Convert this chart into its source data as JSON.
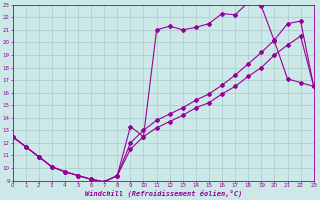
{
  "background_color": "#cce8e8",
  "grid_color": "#aacccc",
  "line_color": "#990099",
  "xlim": [
    0,
    23
  ],
  "ylim": [
    9,
    23
  ],
  "xticks": [
    0,
    1,
    2,
    3,
    4,
    5,
    6,
    7,
    8,
    9,
    10,
    11,
    12,
    13,
    14,
    15,
    16,
    17,
    18,
    19,
    20,
    21,
    22,
    23
  ],
  "yticks": [
    9,
    10,
    11,
    12,
    13,
    14,
    15,
    16,
    17,
    18,
    19,
    20,
    21,
    22,
    23
  ],
  "xlabel": "Windchill (Refroidissement éolien,°C)",
  "line1_x": [
    0,
    1,
    2,
    3,
    4,
    5,
    6,
    7,
    8,
    9,
    10,
    11,
    12,
    13,
    14,
    15,
    16,
    17,
    18,
    19,
    20,
    21,
    22,
    23
  ],
  "line1_y": [
    12.5,
    11.7,
    10.9,
    10.1,
    9.7,
    9.4,
    9.1,
    8.9,
    9.4,
    13.3,
    12.5,
    21.0,
    21.3,
    21.0,
    21.2,
    21.5,
    22.3,
    22.2,
    23.2,
    22.9,
    20.1,
    17.1,
    16.8,
    16.5
  ],
  "line2_x": [
    0,
    1,
    2,
    3,
    4,
    5,
    6,
    7,
    8,
    9,
    10,
    11,
    12,
    13,
    14,
    15,
    16,
    17,
    18,
    19,
    20,
    21,
    22,
    23
  ],
  "line2_y": [
    12.5,
    11.7,
    10.9,
    10.1,
    9.7,
    9.4,
    9.1,
    8.9,
    9.4,
    12.0,
    13.0,
    13.8,
    14.3,
    14.8,
    15.4,
    15.9,
    16.6,
    17.4,
    18.3,
    19.2,
    20.2,
    21.5,
    21.7,
    16.5
  ],
  "line3_x": [
    0,
    1,
    2,
    3,
    4,
    5,
    6,
    7,
    8,
    9,
    10,
    11,
    12,
    13,
    14,
    15,
    16,
    17,
    18,
    19,
    20,
    21,
    22,
    23
  ],
  "line3_y": [
    12.5,
    11.7,
    10.9,
    10.1,
    9.7,
    9.4,
    9.1,
    8.9,
    9.4,
    11.5,
    12.5,
    13.2,
    13.7,
    14.2,
    14.8,
    15.2,
    15.9,
    16.5,
    17.3,
    18.0,
    19.0,
    19.8,
    20.5,
    16.5
  ],
  "markersize": 2.0,
  "linewidth": 0.8
}
